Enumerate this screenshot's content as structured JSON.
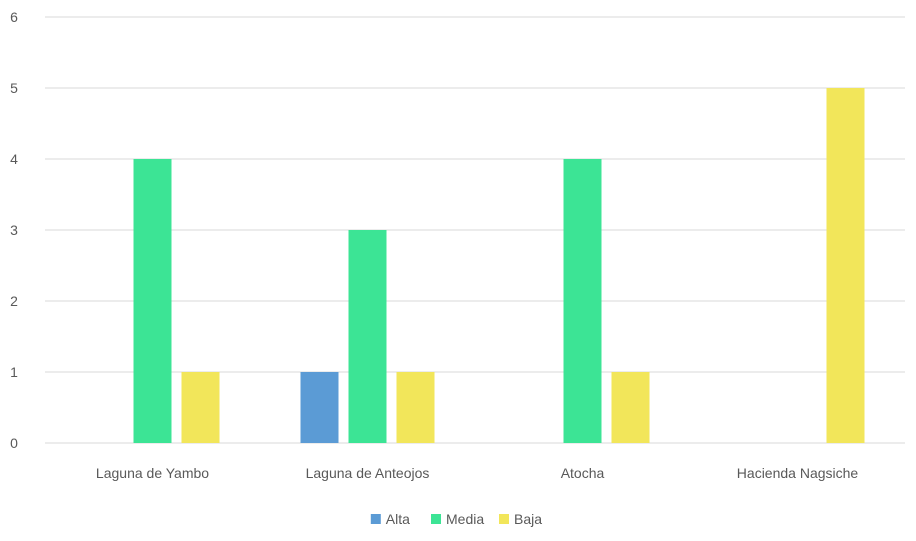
{
  "chart_data": {
    "type": "bar",
    "categories": [
      "Laguna de Yambo",
      "Laguna de Anteojos",
      "Atocha",
      "Hacienda Nagsiche"
    ],
    "series": [
      {
        "name": "Alta",
        "color": "#5B9BD5",
        "values": [
          0,
          1,
          0,
          0
        ]
      },
      {
        "name": "Media",
        "color": "#3CE495",
        "values": [
          4,
          3,
          4,
          0
        ]
      },
      {
        "name": "Baja",
        "color": "#F2E65A",
        "values": [
          1,
          1,
          1,
          5
        ]
      }
    ],
    "yticks": [
      "0",
      "1",
      "2",
      "3",
      "4",
      "5",
      "6"
    ],
    "ylim": [
      0,
      6
    ],
    "grid": true,
    "legend": "bottom-center",
    "gridColor": "#D9D9D9"
  }
}
